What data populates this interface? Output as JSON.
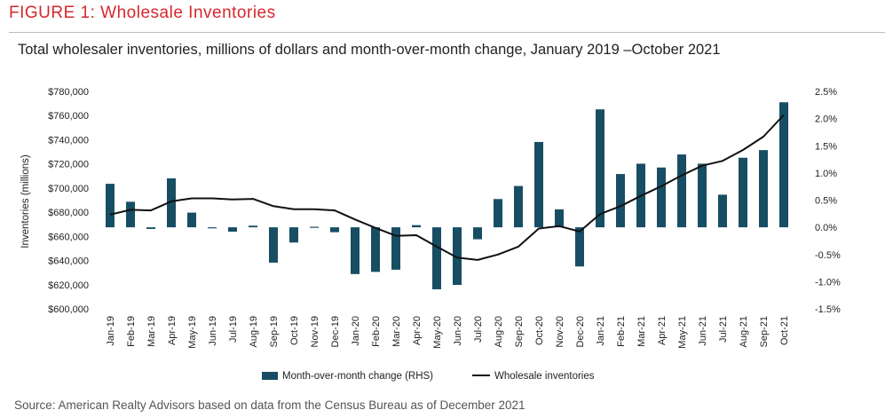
{
  "header": {
    "figure_title": "FIGURE 1: Wholesale Inventories",
    "subtitle": "Total wholesaler inventories, millions of dollars and month-over-month change, January 2019 –October 2021"
  },
  "footer": {
    "source": "Source: American Realty Advisors based on data from the Census Bureau as of December 2021"
  },
  "colors": {
    "title_red": "#d7262d",
    "bar": "#174e63",
    "line": "#111111"
  },
  "chart_data": {
    "type": "bar",
    "categories": [
      "Jan-19",
      "Feb-19",
      "Mar-19",
      "Apr-19",
      "May-19",
      "Jun-19",
      "Jul-19",
      "Aug-19",
      "Sep-19",
      "Oct-19",
      "Nov-19",
      "Dec-19",
      "Jan-20",
      "Feb-20",
      "Mar-20",
      "Apr-20",
      "May-20",
      "Jun-20",
      "Jul-20",
      "Aug-20",
      "Sep-20",
      "Oct-20",
      "Nov-20",
      "Dec-20",
      "Jan-21",
      "Feb-21",
      "Mar-21",
      "Apr-21",
      "May-21",
      "Jun-21",
      "Jul-21",
      "Aug-21",
      "Sep-21",
      "Oct-21"
    ],
    "series": [
      {
        "name": "Month-over-month change (RHS)",
        "kind": "bar",
        "axis": "right",
        "values": [
          0.8,
          0.47,
          -0.03,
          0.9,
          0.27,
          -0.01,
          -0.08,
          0.03,
          -0.65,
          -0.28,
          0.01,
          -0.09,
          -0.86,
          -0.82,
          -0.78,
          0.04,
          -1.14,
          -1.06,
          -0.22,
          0.52,
          0.76,
          1.57,
          0.33,
          -0.72,
          2.17,
          0.98,
          1.17,
          1.1,
          1.34,
          1.17,
          0.6,
          1.28,
          1.42,
          2.3
        ]
      },
      {
        "name": "Wholesale inventories",
        "kind": "line",
        "axis": "left",
        "values": [
          678000,
          682000,
          681500,
          689000,
          691500,
          691500,
          690500,
          691000,
          685000,
          682500,
          682500,
          681500,
          674000,
          667000,
          660500,
          661000,
          651500,
          642500,
          640500,
          645000,
          651500,
          666500,
          668500,
          664000,
          678500,
          685000,
          693500,
          701500,
          710500,
          718500,
          722500,
          731500,
          742500,
          760500
        ]
      }
    ],
    "ylabel": "Inventories (millions)",
    "ylim": [
      600000,
      780000
    ],
    "y_ticks": [
      "$600,000",
      "$620,000",
      "$640,000",
      "$660,000",
      "$680,000",
      "$700,000",
      "$720,000",
      "$740,000",
      "$760,000",
      "$780,000"
    ],
    "y2lim": [
      -1.5,
      2.5
    ],
    "y2_ticks": [
      "-1.5%",
      "-1.0%",
      "-0.5%",
      "0.0%",
      "0.5%",
      "1.0%",
      "1.5%",
      "2.0%",
      "2.5%"
    ],
    "legend_position": "bottom",
    "grid": false
  }
}
